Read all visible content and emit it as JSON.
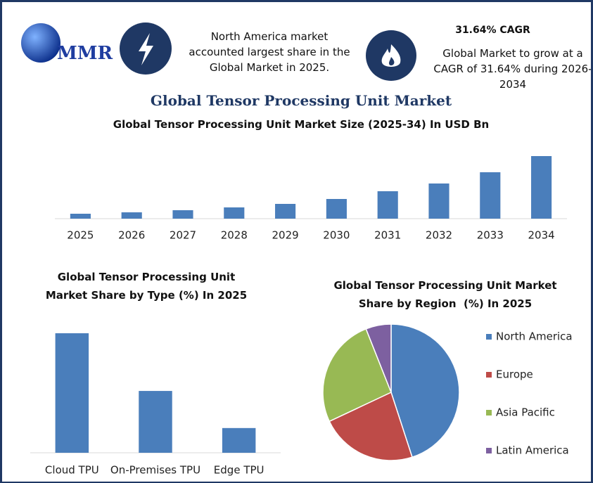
{
  "header": {
    "logo": "MMR",
    "fact": "North America market accounted largest share in the Global Market in 2025.",
    "cagr_title": "31.64% CAGR",
    "cagr_text": "Global Market to grow at a CAGR of 31.64% during 2026-2034",
    "title": "Global Tensor Processing Unit Market"
  },
  "chart_data": [
    {
      "type": "bar",
      "title": "Global Tensor Processing Unit Market Size (2025-34) In USD Bn",
      "categories": [
        "2025",
        "2026",
        "2027",
        "2028",
        "2029",
        "2030",
        "2031",
        "2032",
        "2033",
        "2034"
      ],
      "values": [
        7,
        9,
        12,
        16,
        21,
        28,
        39,
        50,
        66,
        89
      ],
      "color": "#4a7ebb"
    },
    {
      "type": "bar",
      "title": "Global Tensor Processing Unit Market Share by Type (%) In 2025",
      "categories": [
        "Cloud TPU",
        "On-Premises TPU",
        "Edge TPU"
      ],
      "values": [
        58,
        30,
        12
      ],
      "color": "#4a7ebb"
    },
    {
      "type": "pie",
      "title": "Global Tensor Processing Unit Market Share by Region  (%) In 2025",
      "categories": [
        "North America",
        "Europe",
        "Asia Pacific",
        "Latin America"
      ],
      "values": [
        45,
        23,
        26,
        6
      ],
      "colors": [
        "#4a7ebb",
        "#be4b48",
        "#98b954",
        "#7d60a0"
      ],
      "legend": "right"
    }
  ]
}
